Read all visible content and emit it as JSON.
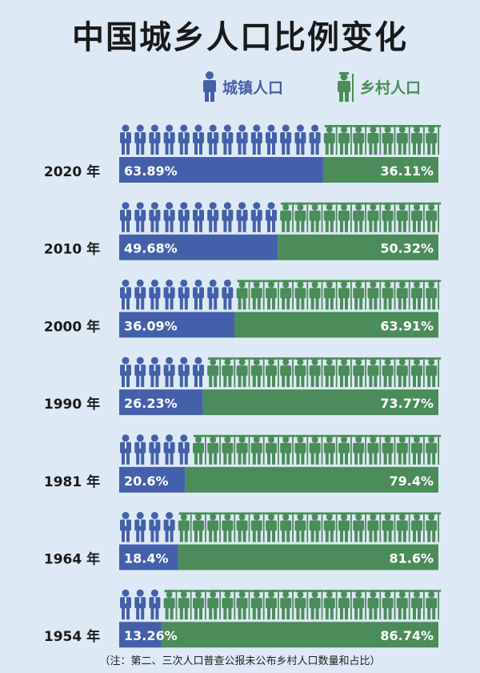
{
  "title": "中国城乡人口比例变化",
  "legend": {
    "urban": "城镇人口",
    "rural": "乡村人口"
  },
  "colors": {
    "urban": "#4560ab",
    "rural": "#4b8c5a",
    "background": "#dde9f4"
  },
  "chart_data": {
    "type": "bar",
    "stacked": true,
    "orientation": "horizontal",
    "categories": [
      "2020 年",
      "2010 年",
      "2000 年",
      "1990 年",
      "1981 年",
      "1964 年",
      "1954 年"
    ],
    "series": [
      {
        "name": "城镇人口",
        "values": [
          63.89,
          49.68,
          36.09,
          26.23,
          20.6,
          18.4,
          13.26
        ],
        "labels": [
          "63.89%",
          "49.68%",
          "36.09%",
          "26.23%",
          "20.6%",
          "18.4%",
          "13.26%"
        ],
        "color": "#4560ab",
        "icon": "urban-person-icon"
      },
      {
        "name": "乡村人口",
        "values": [
          36.11,
          50.32,
          63.91,
          73.77,
          79.4,
          81.6,
          86.74
        ],
        "labels": [
          "36.11%",
          "50.32%",
          "63.91%",
          "73.77%",
          "79.4%",
          "81.6%",
          "86.74%"
        ],
        "color": "#4b8c5a",
        "icon": "farmer-person-icon"
      }
    ],
    "xlim": [
      0,
      100
    ]
  },
  "note": "（注：第二、三次人口普查公报未公布乡村人口数量和占比）"
}
